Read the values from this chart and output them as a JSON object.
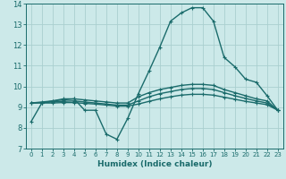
{
  "xlabel": "Humidex (Indice chaleur)",
  "xlim": [
    -0.5,
    23.5
  ],
  "ylim": [
    7,
    14
  ],
  "yticks": [
    7,
    8,
    9,
    10,
    11,
    12,
    13,
    14
  ],
  "xticks": [
    0,
    1,
    2,
    3,
    4,
    5,
    6,
    7,
    8,
    9,
    10,
    11,
    12,
    13,
    14,
    15,
    16,
    17,
    18,
    19,
    20,
    21,
    22,
    23
  ],
  "bg_color": "#cce9e9",
  "grid_color": "#aacfcf",
  "line_color": "#1a6b6b",
  "line1_y": [
    8.3,
    9.2,
    9.3,
    9.4,
    9.4,
    8.85,
    8.85,
    7.7,
    7.45,
    8.45,
    9.65,
    10.75,
    11.9,
    13.15,
    13.55,
    13.8,
    13.8,
    13.15,
    11.4,
    10.95,
    10.35,
    10.2,
    9.55,
    8.85
  ],
  "line2_y": [
    9.2,
    9.25,
    9.3,
    9.35,
    9.4,
    9.35,
    9.3,
    9.25,
    9.2,
    9.2,
    9.5,
    9.7,
    9.85,
    9.95,
    10.05,
    10.1,
    10.1,
    10.05,
    9.85,
    9.7,
    9.55,
    9.4,
    9.3,
    8.85
  ],
  "line3_y": [
    9.2,
    9.22,
    9.25,
    9.28,
    9.3,
    9.25,
    9.2,
    9.15,
    9.1,
    9.1,
    9.3,
    9.5,
    9.65,
    9.75,
    9.85,
    9.9,
    9.9,
    9.85,
    9.7,
    9.55,
    9.42,
    9.3,
    9.2,
    8.85
  ],
  "line4_y": [
    9.2,
    9.2,
    9.2,
    9.22,
    9.22,
    9.18,
    9.15,
    9.1,
    9.05,
    9.05,
    9.15,
    9.28,
    9.4,
    9.5,
    9.58,
    9.62,
    9.62,
    9.58,
    9.48,
    9.38,
    9.28,
    9.2,
    9.12,
    8.85
  ],
  "linewidth": 1.0,
  "markersize": 3
}
